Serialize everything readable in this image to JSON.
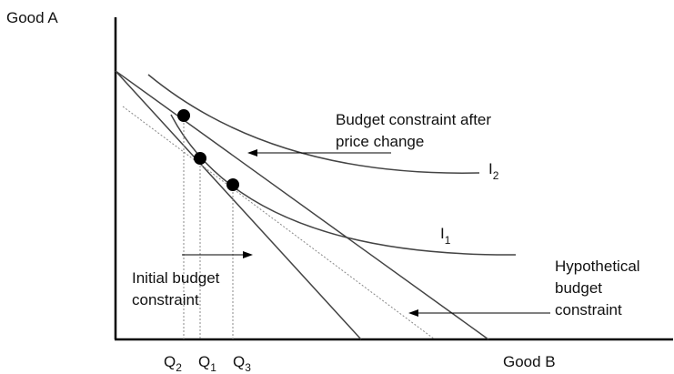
{
  "axes": {
    "y_label": "Good A",
    "x_label": "Good B"
  },
  "curves": {
    "i2": {
      "base": "I",
      "sub": "2"
    },
    "i1": {
      "base": "I",
      "sub": "1"
    }
  },
  "quantities": [
    {
      "base": "Q",
      "sub": "2"
    },
    {
      "base": "Q",
      "sub": "1"
    },
    {
      "base": "Q",
      "sub": "3"
    }
  ],
  "annotations": {
    "after_price_change": [
      "Budget constraint after",
      "price change"
    ],
    "initial": [
      "Initial budget",
      "constraint"
    ],
    "hypothetical": [
      "Hypothetical",
      "budget",
      "constraint"
    ]
  },
  "colors": {
    "ink": "#111111",
    "axis": "#000000",
    "line": "#444444",
    "dotted": "#888888"
  }
}
